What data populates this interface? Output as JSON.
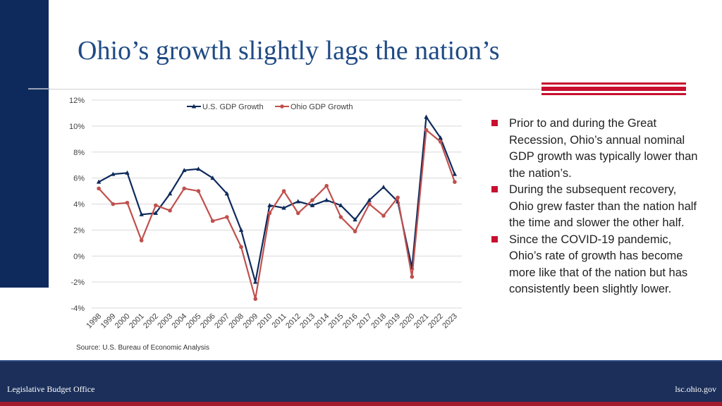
{
  "title": "Ohio’s growth slightly lags the nation’s",
  "colors": {
    "navy": "#0e2a5c",
    "title_blue": "#1f4a85",
    "accent_red": "#c8102e",
    "us_line": "#0e2a5c",
    "ohio_line": "#c0504d"
  },
  "bullets": [
    "Prior to and during the Great Recession, Ohio’s annual nominal GDP growth was typically lower than the nation’s.",
    "During the subsequent recovery, Ohio grew faster than the nation half the time and slower the other half.",
    "Since the COVID-19 pandemic, Ohio’s rate of growth has become more like that of the nation but has consistently been slightly lower."
  ],
  "source": "Source: U.S. Bureau of Economic Analysis",
  "footer": {
    "left": "Legislative Budget Office",
    "right": "lsc.ohio.gov"
  },
  "chart_data": {
    "type": "line",
    "x": [
      "1998",
      "1999",
      "2000",
      "2001",
      "2002",
      "2003",
      "2004",
      "2005",
      "2006",
      "2007",
      "2008",
      "2009",
      "2010",
      "2011",
      "2012",
      "2013",
      "2014",
      "2015",
      "2016",
      "2017",
      "2018",
      "2019",
      "2020",
      "2021",
      "2022",
      "2023"
    ],
    "series": [
      {
        "name": "U.S. GDP Growth",
        "color": "#0e2a5c",
        "marker": "triangle",
        "values": [
          5.7,
          6.3,
          6.4,
          3.2,
          3.3,
          4.8,
          6.6,
          6.7,
          6.0,
          4.8,
          2.0,
          -2.0,
          3.9,
          3.7,
          4.2,
          3.9,
          4.3,
          3.9,
          2.8,
          4.3,
          5.3,
          4.2,
          -0.9,
          10.7,
          9.1,
          6.3
        ]
      },
      {
        "name": "Ohio GDP Growth",
        "color": "#c0504d",
        "marker": "circle",
        "values": [
          5.2,
          4.0,
          4.1,
          1.2,
          3.9,
          3.5,
          5.2,
          5.0,
          2.7,
          3.0,
          0.7,
          -3.3,
          3.3,
          5.0,
          3.3,
          4.3,
          5.4,
          3.0,
          1.9,
          4.0,
          3.1,
          4.5,
          -1.6,
          9.7,
          8.8,
          5.7
        ]
      }
    ],
    "y_ticks": [
      "12%",
      "10%",
      "8%",
      "6%",
      "4%",
      "2%",
      "0%",
      "-2%",
      "-4%"
    ],
    "ylim": [
      -4,
      12
    ],
    "grid": true,
    "legend": "top-center"
  }
}
